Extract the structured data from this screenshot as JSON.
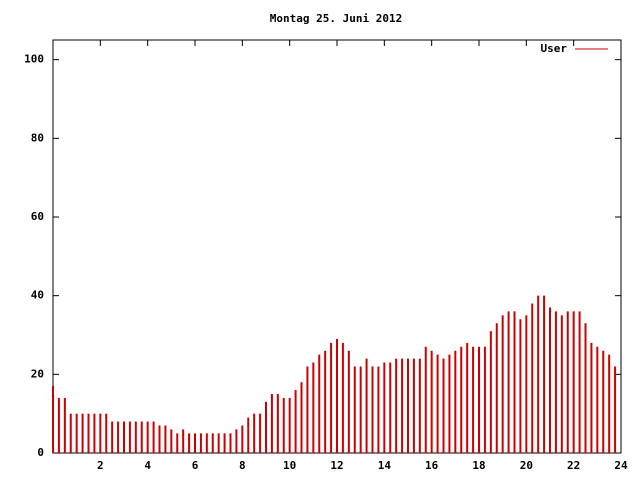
{
  "chart_data": {
    "type": "impulse",
    "title": "Montag 25. Juni 2012",
    "x": [
      0,
      0.25,
      0.5,
      0.75,
      1,
      1.25,
      1.5,
      1.75,
      2,
      2.25,
      2.5,
      2.75,
      3,
      3.25,
      3.5,
      3.75,
      4,
      4.25,
      4.5,
      4.75,
      5,
      5.25,
      5.5,
      5.75,
      6,
      6.25,
      6.5,
      6.75,
      7,
      7.25,
      7.5,
      7.75,
      8,
      8.25,
      8.5,
      8.75,
      9,
      9.25,
      9.5,
      9.75,
      10,
      10.25,
      10.5,
      10.75,
      11,
      11.25,
      11.5,
      11.75,
      12,
      12.25,
      12.5,
      12.75,
      13,
      13.25,
      13.5,
      13.75,
      14,
      14.25,
      14.5,
      14.75,
      15,
      15.25,
      15.5,
      15.75,
      16,
      16.25,
      16.5,
      16.75,
      17,
      17.25,
      17.5,
      17.75,
      18,
      18.25,
      18.5,
      18.75,
      19,
      19.25,
      19.5,
      19.75,
      20,
      20.25,
      20.5,
      20.75,
      21,
      21.25,
      21.5,
      21.75,
      22,
      22.25,
      22.5,
      22.75,
      23,
      23.25,
      23.5,
      23.75
    ],
    "series": [
      {
        "name": "User",
        "color": "#cc0000",
        "values": [
          17,
          14,
          14,
          10,
          10,
          10,
          10,
          10,
          10,
          10,
          8,
          8,
          8,
          8,
          8,
          8,
          8,
          8,
          7,
          7,
          6,
          5,
          6,
          5,
          5,
          5,
          5,
          5,
          5,
          5,
          5,
          6,
          7,
          9,
          10,
          10,
          13,
          15,
          15,
          14,
          14,
          16,
          18,
          22,
          23,
          25,
          26,
          28,
          29,
          28,
          26,
          22,
          22,
          24,
          22,
          22,
          23,
          23,
          24,
          24,
          24,
          24,
          24,
          27,
          26,
          25,
          24,
          25,
          26,
          27,
          28,
          27,
          27,
          27,
          31,
          33,
          35,
          36,
          36,
          34,
          35,
          38,
          40,
          40,
          37,
          36,
          35,
          36,
          36,
          36,
          33,
          28,
          27,
          26,
          25,
          22
        ]
      }
    ],
    "xlim": [
      0,
      24
    ],
    "xticks": [
      2,
      4,
      6,
      8,
      10,
      12,
      14,
      16,
      18,
      20,
      22,
      24
    ],
    "ylim": [
      0,
      105
    ],
    "yticks": [
      0,
      20,
      40,
      60,
      80,
      100
    ],
    "legend": "top-right"
  }
}
